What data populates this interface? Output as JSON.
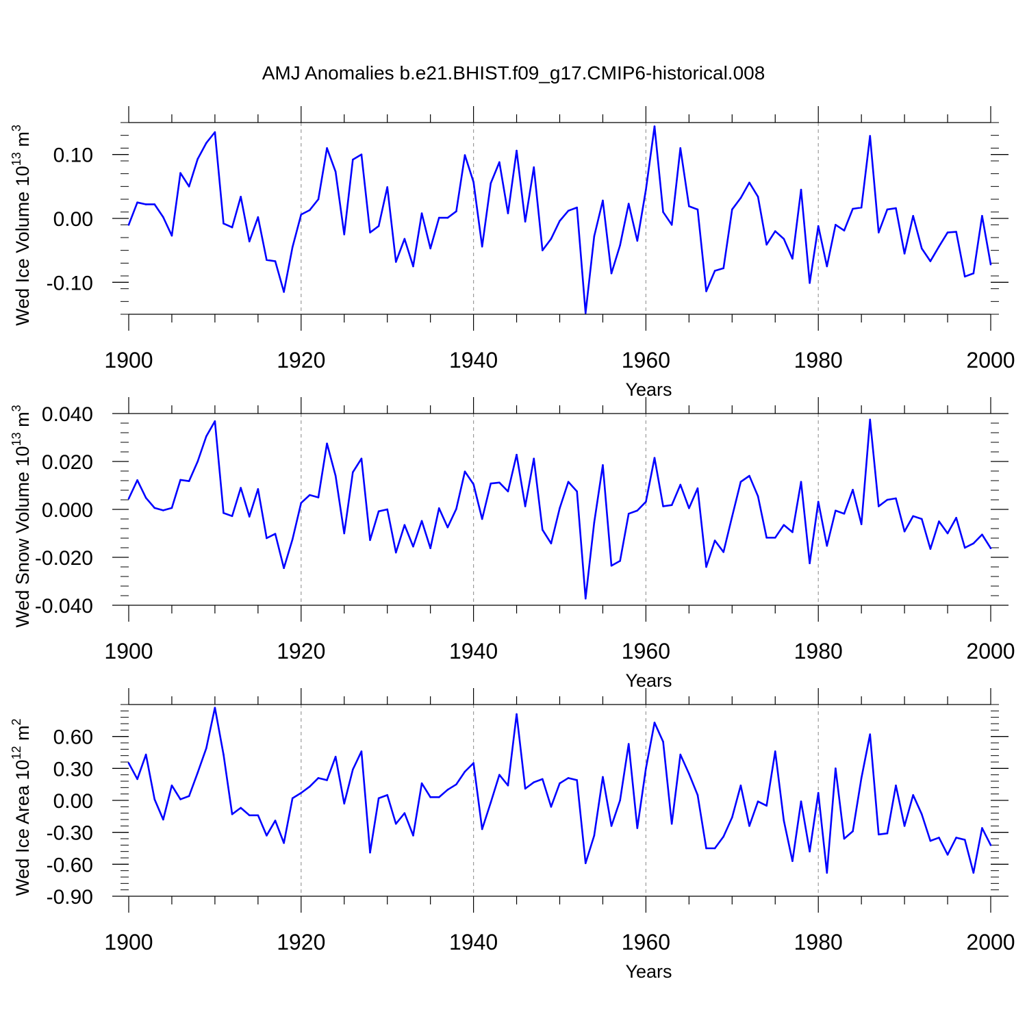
{
  "title": "AMJ Anomalies b.e21.BHIST.f09_g17.CMIP6-historical.008",
  "colors": {
    "series": "#0000ff",
    "axis": "#000000",
    "grid": "#9a9a9a"
  },
  "chart_data": [
    {
      "type": "line",
      "title": "AMJ Anomalies b.e21.BHIST.f09_g17.CMIP6-historical.008",
      "ylabel_main": "Wed Ice Volume 10",
      "ylabel_exp": "13",
      "ylabel_unit": " m",
      "ylabel_unit_exp": "3",
      "xlabel": "Years",
      "xlim": [
        1900,
        2000
      ],
      "ylim": [
        -0.15,
        0.15
      ],
      "xticks": [
        1900,
        1920,
        1940,
        1960,
        1980,
        2000
      ],
      "xtick_labels": [
        "1900",
        "1920",
        "1940",
        "1960",
        "1980",
        "2000"
      ],
      "yticks": [
        -0.1,
        0.0,
        0.1
      ],
      "ytick_labels": [
        "-0.10",
        "0.00",
        "0.10"
      ],
      "grid_x": [
        1920,
        1940,
        1960,
        1980
      ],
      "x_start": 1900,
      "values": [
        -0.01,
        0.025,
        0.022,
        0.022,
        0.002,
        -0.027,
        0.071,
        0.05,
        0.093,
        0.118,
        0.135,
        -0.008,
        -0.014,
        0.034,
        -0.036,
        0.002,
        -0.065,
        -0.067,
        -0.115,
        -0.045,
        0.006,
        0.013,
        0.03,
        0.11,
        0.073,
        -0.025,
        0.092,
        0.1,
        -0.022,
        -0.012,
        0.049,
        -0.068,
        -0.032,
        -0.075,
        0.008,
        -0.047,
        0.001,
        0.001,
        0.011,
        0.099,
        0.057,
        -0.044,
        0.055,
        0.088,
        0.008,
        0.106,
        -0.005,
        0.08,
        -0.05,
        -0.032,
        -0.004,
        0.012,
        0.017,
        -0.148,
        -0.028,
        0.028,
        -0.086,
        -0.042,
        0.023,
        -0.035,
        0.045,
        0.144,
        0.01,
        -0.01,
        0.11,
        0.019,
        0.014,
        -0.114,
        -0.082,
        -0.078,
        0.014,
        0.032,
        0.056,
        0.034,
        -0.041,
        -0.02,
        -0.032,
        -0.063,
        0.045,
        -0.101,
        -0.012,
        -0.075,
        -0.01,
        -0.019,
        0.015,
        0.017,
        0.129,
        -0.022,
        0.014,
        0.016,
        -0.055,
        0.004,
        -0.047,
        -0.067,
        -0.044,
        -0.022,
        -0.021,
        -0.091,
        -0.086,
        0.004,
        -0.072
      ]
    },
    {
      "type": "line",
      "ylabel_main": "Wed Snow Volume 10",
      "ylabel_exp": "13",
      "ylabel_unit": " m",
      "ylabel_unit_exp": "3",
      "xlabel": "Years",
      "xlim": [
        1900,
        2000
      ],
      "ylim": [
        -0.04,
        0.04
      ],
      "xticks": [
        1900,
        1920,
        1940,
        1960,
        1980,
        2000
      ],
      "xtick_labels": [
        "1900",
        "1920",
        "1940",
        "1960",
        "1980",
        "2000"
      ],
      "yticks": [
        -0.04,
        -0.02,
        0.0,
        0.02,
        0.04
      ],
      "ytick_labels": [
        "-0.040",
        "-0.020",
        "0.000",
        "0.020",
        "0.040"
      ],
      "grid_x": [
        1920,
        1940,
        1960,
        1980
      ],
      "x_start": 1900,
      "values": [
        0.0045,
        0.0122,
        0.0048,
        0.0006,
        -0.0004,
        0.0006,
        0.0123,
        0.0118,
        0.02,
        0.0305,
        0.0368,
        -0.0015,
        -0.0028,
        0.009,
        -0.003,
        0.0085,
        -0.012,
        -0.0102,
        -0.0245,
        -0.0125,
        0.0027,
        0.006,
        0.005,
        0.0275,
        0.014,
        -0.01,
        0.0155,
        0.0212,
        -0.0128,
        -0.0008,
        0.0,
        -0.018,
        -0.0065,
        -0.0155,
        -0.0048,
        -0.0162,
        0.0005,
        -0.0075,
        0.0002,
        0.0158,
        0.0105,
        -0.004,
        0.0108,
        0.0112,
        0.0075,
        0.0228,
        0.0013,
        0.0212,
        -0.0085,
        -0.0142,
        0.0005,
        0.0115,
        0.0075,
        -0.0372,
        -0.0055,
        0.0185,
        -0.0235,
        -0.0215,
        -0.0018,
        -0.0005,
        0.0032,
        0.0215,
        0.0013,
        0.0018,
        0.0103,
        0.0005,
        0.0088,
        -0.024,
        -0.013,
        -0.0178,
        -0.003,
        0.0115,
        0.014,
        0.0055,
        -0.0118,
        -0.0118,
        -0.0065,
        -0.0095,
        0.0115,
        -0.0225,
        0.0032,
        -0.0152,
        -0.0005,
        -0.0018,
        0.0082,
        -0.0062,
        0.0375,
        0.0013,
        0.004,
        0.0046,
        -0.0092,
        -0.0028,
        -0.004,
        -0.0165,
        -0.005,
        -0.01,
        -0.0035,
        -0.016,
        -0.0142,
        -0.0105,
        -0.0162
      ]
    },
    {
      "type": "line",
      "ylabel_main": "Wed Ice Area 10",
      "ylabel_exp": "12",
      "ylabel_unit": " m",
      "ylabel_unit_exp": "2",
      "xlabel": "Years",
      "xlim": [
        1900,
        2000
      ],
      "ylim": [
        -0.9,
        0.9
      ],
      "xticks": [
        1900,
        1920,
        1940,
        1960,
        1980,
        2000
      ],
      "xtick_labels": [
        "1900",
        "1920",
        "1940",
        "1960",
        "1980",
        "2000"
      ],
      "yticks": [
        -0.9,
        -0.6,
        -0.3,
        0.0,
        0.3,
        0.6
      ],
      "ytick_labels": [
        "-0.90",
        "-0.60",
        "-0.30",
        "0.00",
        "0.30",
        "0.60"
      ],
      "grid_x": [
        1920,
        1940,
        1960,
        1980
      ],
      "x_start": 1900,
      "values": [
        0.35,
        0.2,
        0.43,
        0.01,
        -0.18,
        0.14,
        0.01,
        0.04,
        0.26,
        0.49,
        0.87,
        0.43,
        -0.13,
        -0.07,
        -0.14,
        -0.14,
        -0.33,
        -0.19,
        -0.4,
        0.02,
        0.07,
        0.13,
        0.21,
        0.19,
        0.41,
        -0.03,
        0.29,
        0.46,
        -0.49,
        0.02,
        0.05,
        -0.22,
        -0.12,
        -0.33,
        0.16,
        0.03,
        0.03,
        0.1,
        0.15,
        0.27,
        0.35,
        -0.27,
        -0.02,
        0.24,
        0.14,
        0.81,
        0.11,
        0.17,
        0.2,
        -0.06,
        0.16,
        0.21,
        0.19,
        -0.59,
        -0.33,
        0.22,
        -0.24,
        0.0,
        0.53,
        -0.26,
        0.3,
        0.73,
        0.55,
        -0.22,
        0.43,
        0.25,
        0.05,
        -0.45,
        -0.45,
        -0.34,
        -0.16,
        0.14,
        -0.24,
        -0.01,
        -0.05,
        0.46,
        -0.19,
        -0.57,
        -0.01,
        -0.48,
        0.07,
        -0.68,
        0.3,
        -0.36,
        -0.29,
        0.21,
        0.62,
        -0.32,
        -0.31,
        0.14,
        -0.24,
        0.05,
        -0.13,
        -0.38,
        -0.35,
        -0.51,
        -0.35,
        -0.37,
        -0.68,
        -0.26,
        -0.42
      ]
    }
  ]
}
